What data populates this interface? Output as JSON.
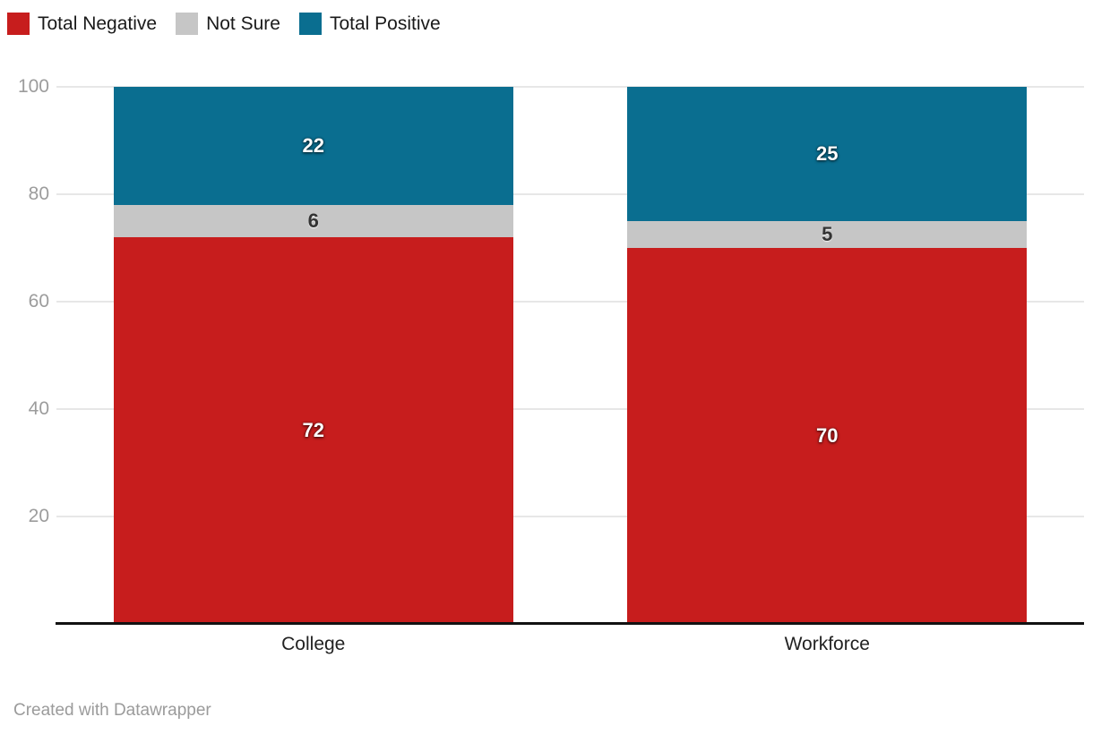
{
  "legend": {
    "items": [
      {
        "label": "Total Negative",
        "color": "#c71d1d",
        "icon": "red-swatch"
      },
      {
        "label": "Not Sure",
        "color": "#c6c6c6",
        "icon": "gray-swatch"
      },
      {
        "label": "Total Positive",
        "color": "#0a6e90",
        "icon": "teal-swatch"
      }
    ]
  },
  "chart_data": {
    "type": "bar",
    "stacked": true,
    "orientation": "vertical",
    "categories": [
      "College",
      "Workforce"
    ],
    "series": [
      {
        "name": "Total Negative",
        "values": [
          72,
          70
        ],
        "color": "#c71d1d",
        "label_style": "light"
      },
      {
        "name": "Not Sure",
        "values": [
          6,
          5
        ],
        "color": "#c6c6c6",
        "label_style": "dark"
      },
      {
        "name": "Total Positive",
        "values": [
          22,
          25
        ],
        "color": "#0a6e90",
        "label_style": "light"
      }
    ],
    "ylim": [
      0,
      100
    ],
    "yticks": [
      20,
      40,
      60,
      80,
      100
    ],
    "grid": "horizontal",
    "gridline_color": "#e7e7e7",
    "axis_tick_color": "#9c9c9c",
    "baseline_color": "#121212",
    "legend_position": "top-left",
    "value_labels": true,
    "title": "",
    "xlabel": "",
    "ylabel": ""
  },
  "footer": {
    "credit": "Created with Datawrapper"
  }
}
